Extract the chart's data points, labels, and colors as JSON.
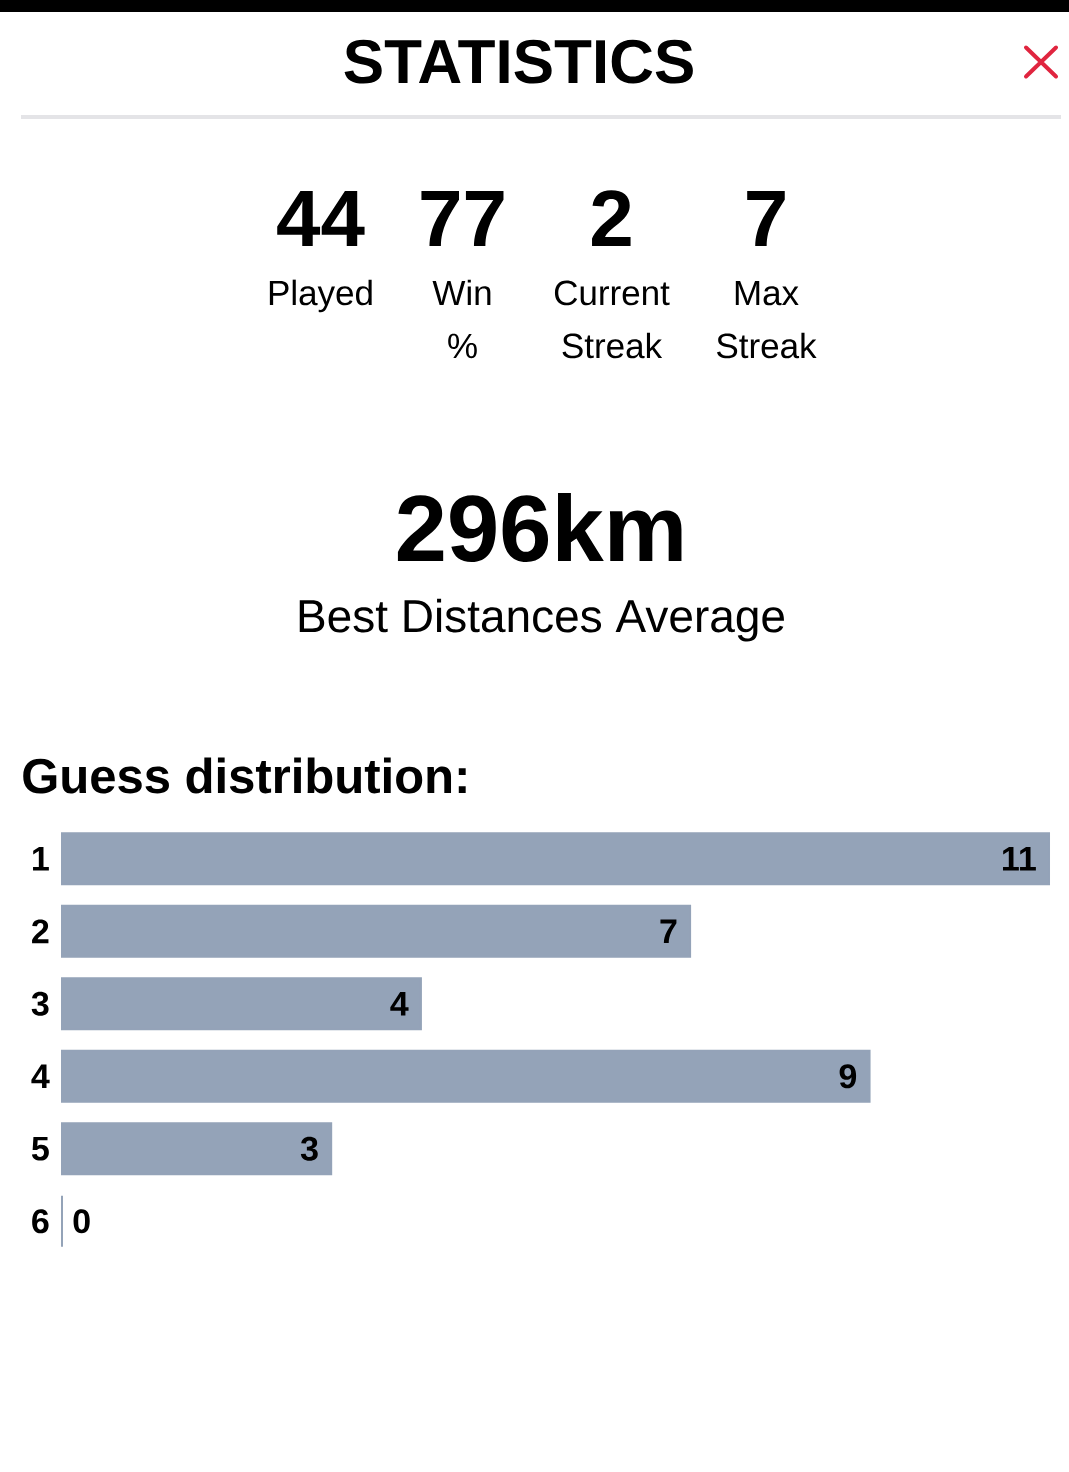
{
  "chart_data": {
    "type": "bar",
    "orientation": "horizontal",
    "title": "STATISTICS",
    "subtitle": "Guess distribution:",
    "annotations": [
      "44",
      "Played",
      "77",
      "Win %",
      "2",
      "Current Streak",
      "7",
      "Max Streak",
      "296km",
      "Best Distances Average"
    ],
    "categories": [
      "1",
      "2",
      "3",
      "4",
      "5",
      "6"
    ],
    "values": [
      11,
      7,
      4,
      9,
      3,
      0
    ],
    "color": "#94a3b8",
    "data_labels": true
  }
}
